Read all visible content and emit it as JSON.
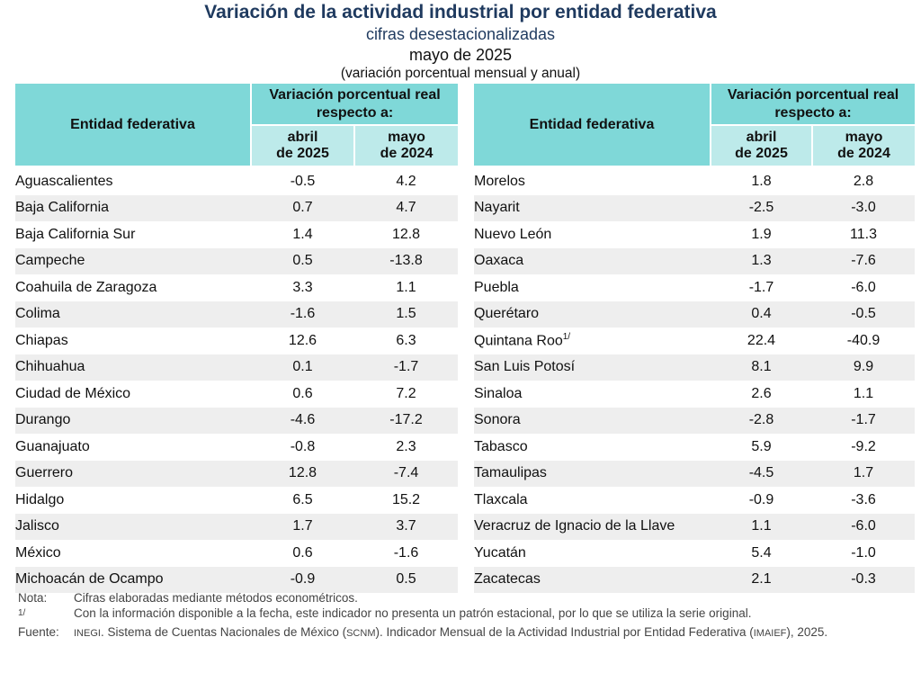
{
  "title": "Variación de la actividad industrial por entidad federativa",
  "subtitle": "cifras desestacionalizadas",
  "date": "mayo de 2025",
  "units": "(variación porcentual mensual y anual)",
  "header": {
    "entity": "Entidad federativa",
    "variation": "Variación porcentual real respecto a:",
    "col1_line1": "abril",
    "col1_line2": "de 2025",
    "col2_line1": "mayo",
    "col2_line2": "de 2024"
  },
  "left_rows": [
    {
      "name": "Aguascalientes",
      "mensual": "-0.5",
      "anual": "4.2"
    },
    {
      "name": "Baja California",
      "mensual": "0.7",
      "anual": "4.7"
    },
    {
      "name": "Baja California Sur",
      "mensual": "1.4",
      "anual": "12.8"
    },
    {
      "name": "Campeche",
      "mensual": "0.5",
      "anual": "-13.8"
    },
    {
      "name": "Coahuila de Zaragoza",
      "mensual": "3.3",
      "anual": "1.1"
    },
    {
      "name": "Colima",
      "mensual": "-1.6",
      "anual": "1.5"
    },
    {
      "name": "Chiapas",
      "mensual": "12.6",
      "anual": "6.3"
    },
    {
      "name": "Chihuahua",
      "mensual": "0.1",
      "anual": "-1.7"
    },
    {
      "name": "Ciudad de México",
      "mensual": "0.6",
      "anual": "7.2"
    },
    {
      "name": "Durango",
      "mensual": "-4.6",
      "anual": "-17.2"
    },
    {
      "name": "Guanajuato",
      "mensual": "-0.8",
      "anual": "2.3"
    },
    {
      "name": "Guerrero",
      "mensual": "12.8",
      "anual": "-7.4"
    },
    {
      "name": "Hidalgo",
      "mensual": "6.5",
      "anual": "15.2"
    },
    {
      "name": "Jalisco",
      "mensual": "1.7",
      "anual": "3.7"
    },
    {
      "name": "México",
      "mensual": "0.6",
      "anual": "-1.6"
    },
    {
      "name": "Michoacán de Ocampo",
      "mensual": "-0.9",
      "anual": "0.5"
    }
  ],
  "right_rows": [
    {
      "name": "Morelos",
      "mensual": "1.8",
      "anual": "2.8"
    },
    {
      "name": "Nayarit",
      "mensual": "-2.5",
      "anual": "-3.0"
    },
    {
      "name": "Nuevo León",
      "mensual": "1.9",
      "anual": "11.3"
    },
    {
      "name": "Oaxaca",
      "mensual": "1.3",
      "anual": "-7.6"
    },
    {
      "name": "Puebla",
      "mensual": "-1.7",
      "anual": "-6.0"
    },
    {
      "name": "Querétaro",
      "mensual": "0.4",
      "anual": "-0.5"
    },
    {
      "name": "Quintana Roo",
      "sup": "1/",
      "mensual": "22.4",
      "anual": "-40.9"
    },
    {
      "name": "San Luis Potosí",
      "mensual": "8.1",
      "anual": "9.9"
    },
    {
      "name": "Sinaloa",
      "mensual": "2.6",
      "anual": "1.1"
    },
    {
      "name": "Sonora",
      "mensual": "-2.8",
      "anual": "-1.7"
    },
    {
      "name": "Tabasco",
      "mensual": "5.9",
      "anual": "-9.2"
    },
    {
      "name": "Tamaulipas",
      "mensual": "-4.5",
      "anual": "1.7"
    },
    {
      "name": "Tlaxcala",
      "mensual": "-0.9",
      "anual": "-3.6"
    },
    {
      "name": "Veracruz de Ignacio de la Llave",
      "mensual": "1.1",
      "anual": "-6.0"
    },
    {
      "name": "Yucatán",
      "mensual": "5.4",
      "anual": "-1.0"
    },
    {
      "name": "Zacatecas",
      "mensual": "2.1",
      "anual": "-0.3"
    }
  ],
  "notes": {
    "nota_label": "Nota:",
    "nota_text": "Cifras elaboradas mediante métodos econométricos.",
    "footnote_label": "1/",
    "footnote_text": "Con la información disponible a la fecha, este indicador no presenta un patrón estacional, por lo que se utiliza la serie original.",
    "fuente_label": "Fuente:",
    "fuente_inegi": "INEGI",
    "fuente_part1": ". Sistema de Cuentas Nacionales de México (",
    "fuente_scnm": "SCNM",
    "fuente_part2": "). Indicador Mensual de la Actividad Industrial por Entidad Federativa (",
    "fuente_imaief": "IMAIEF",
    "fuente_part3": "), 2025."
  }
}
